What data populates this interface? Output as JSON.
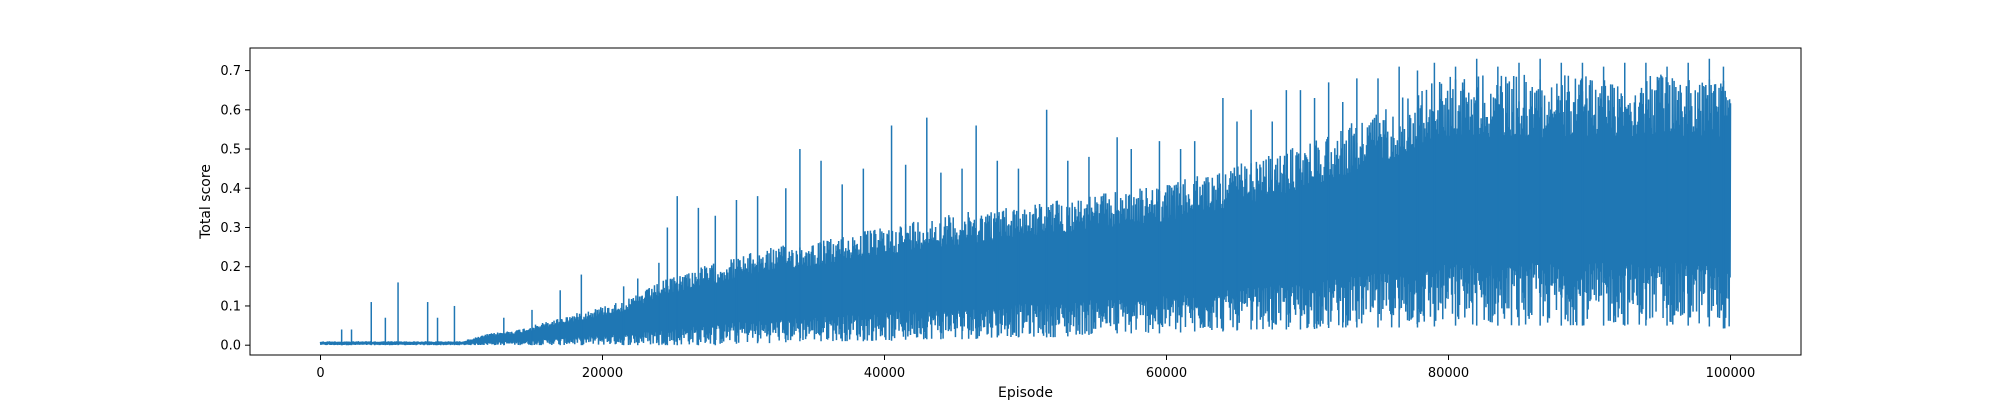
{
  "chart_data": {
    "type": "line",
    "title": "",
    "xlabel": "Episode",
    "ylabel": "Total score",
    "xlim": [
      -5000,
      105000
    ],
    "ylim": [
      -0.025,
      0.7575
    ],
    "xticks": [
      0,
      20000,
      40000,
      60000,
      80000,
      100000
    ],
    "xtick_labels": [
      "0",
      "20000",
      "40000",
      "60000",
      "80000",
      "100000"
    ],
    "yticks": [
      0.0,
      0.1,
      0.2,
      0.3,
      0.4,
      0.5,
      0.6,
      0.7
    ],
    "ytick_labels": [
      "0.0",
      "0.1",
      "0.2",
      "0.3",
      "0.4",
      "0.5",
      "0.6",
      "0.7"
    ],
    "grid": false,
    "legend": "none",
    "series": [
      {
        "color": "#1f77b4",
        "x": [
          0,
          2000,
          4000,
          6000,
          8000,
          10000,
          12000,
          14000,
          16000,
          18000,
          20000,
          22000,
          24000,
          26000,
          28000,
          30000,
          32000,
          34000,
          36000,
          38000,
          40000,
          42000,
          44000,
          46000,
          48000,
          50000,
          52000,
          54000,
          56000,
          58000,
          60000,
          62000,
          64000,
          66000,
          68000,
          70000,
          72000,
          74000,
          76000,
          78000,
          80000,
          82000,
          84000,
          86000,
          88000,
          90000,
          92000,
          94000,
          96000,
          98000,
          100000
        ],
        "min": [
          0,
          0,
          0,
          0,
          0,
          0,
          0,
          0,
          0,
          0,
          0,
          0,
          0,
          0,
          0,
          0,
          0,
          0,
          0,
          0,
          0,
          0,
          0,
          0,
          0,
          0,
          0,
          0,
          0,
          0,
          0,
          0,
          0,
          0,
          0,
          0,
          0,
          0,
          0,
          0,
          0,
          0,
          0,
          0,
          0,
          0,
          0,
          0,
          0,
          0,
          0
        ],
        "lower": [
          0.0,
          0.0,
          0.0,
          0.0,
          0.0,
          0.0,
          0.0,
          0.0,
          0.0,
          0.0,
          0.0,
          0.0,
          0.0,
          0.0,
          0.0,
          0.005,
          0.005,
          0.01,
          0.01,
          0.01,
          0.01,
          0.015,
          0.015,
          0.015,
          0.02,
          0.02,
          0.02,
          0.025,
          0.03,
          0.03,
          0.03,
          0.035,
          0.035,
          0.04,
          0.04,
          0.04,
          0.045,
          0.045,
          0.045,
          0.045,
          0.05,
          0.05,
          0.05,
          0.05,
          0.05,
          0.05,
          0.05,
          0.05,
          0.05,
          0.05,
          0.04
        ],
        "upper": [
          0.01,
          0.01,
          0.01,
          0.01,
          0.01,
          0.01,
          0.03,
          0.04,
          0.06,
          0.08,
          0.1,
          0.12,
          0.16,
          0.19,
          0.21,
          0.23,
          0.25,
          0.26,
          0.27,
          0.29,
          0.3,
          0.32,
          0.33,
          0.34,
          0.35,
          0.36,
          0.37,
          0.38,
          0.39,
          0.4,
          0.41,
          0.43,
          0.45,
          0.47,
          0.49,
          0.52,
          0.55,
          0.58,
          0.62,
          0.66,
          0.69,
          0.69,
          0.69,
          0.69,
          0.69,
          0.69,
          0.69,
          0.69,
          0.69,
          0.69,
          0.68
        ],
        "peaks": [
          [
            1500,
            0.04
          ],
          [
            2200,
            0.04
          ],
          [
            3600,
            0.11
          ],
          [
            4600,
            0.07
          ],
          [
            5500,
            0.16
          ],
          [
            7600,
            0.11
          ],
          [
            8300,
            0.07
          ],
          [
            9500,
            0.1
          ],
          [
            13000,
            0.07
          ],
          [
            15000,
            0.09
          ],
          [
            17000,
            0.14
          ],
          [
            18500,
            0.18
          ],
          [
            21500,
            0.15
          ],
          [
            22500,
            0.17
          ],
          [
            24000,
            0.21
          ],
          [
            24600,
            0.3
          ],
          [
            25300,
            0.38
          ],
          [
            26800,
            0.35
          ],
          [
            28000,
            0.33
          ],
          [
            29500,
            0.37
          ],
          [
            31000,
            0.38
          ],
          [
            33000,
            0.4
          ],
          [
            34000,
            0.5
          ],
          [
            35500,
            0.47
          ],
          [
            37000,
            0.41
          ],
          [
            38500,
            0.45
          ],
          [
            40500,
            0.56
          ],
          [
            41500,
            0.46
          ],
          [
            43000,
            0.58
          ],
          [
            44000,
            0.44
          ],
          [
            45500,
            0.45
          ],
          [
            46500,
            0.56
          ],
          [
            48000,
            0.47
          ],
          [
            49500,
            0.45
          ],
          [
            51500,
            0.6
          ],
          [
            53000,
            0.47
          ],
          [
            54500,
            0.48
          ],
          [
            56500,
            0.53
          ],
          [
            57500,
            0.5
          ],
          [
            59500,
            0.52
          ],
          [
            61000,
            0.5
          ],
          [
            62000,
            0.52
          ],
          [
            64000,
            0.63
          ],
          [
            65000,
            0.57
          ],
          [
            66000,
            0.6
          ],
          [
            67500,
            0.57
          ],
          [
            68500,
            0.65
          ],
          [
            69500,
            0.65
          ],
          [
            70500,
            0.63
          ],
          [
            71500,
            0.67
          ],
          [
            72500,
            0.62
          ],
          [
            73500,
            0.68
          ],
          [
            75000,
            0.68
          ],
          [
            76500,
            0.71
          ],
          [
            77800,
            0.7
          ],
          [
            79000,
            0.72
          ],
          [
            80500,
            0.71
          ],
          [
            82000,
            0.73
          ],
          [
            83500,
            0.71
          ],
          [
            85000,
            0.72
          ],
          [
            86500,
            0.73
          ],
          [
            88000,
            0.72
          ],
          [
            89500,
            0.72
          ],
          [
            91000,
            0.71
          ],
          [
            92500,
            0.72
          ],
          [
            94000,
            0.72
          ],
          [
            95500,
            0.71
          ],
          [
            97000,
            0.72
          ],
          [
            98500,
            0.73
          ],
          [
            99500,
            0.71
          ]
        ]
      }
    ]
  }
}
